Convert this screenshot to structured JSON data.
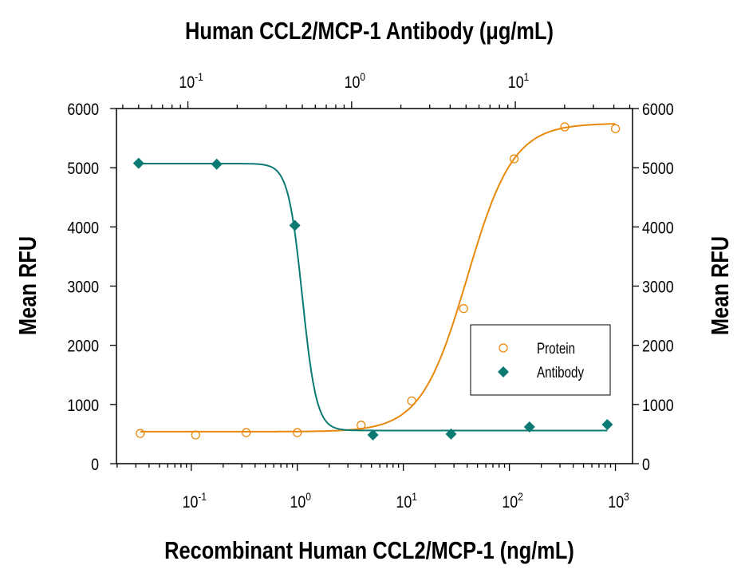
{
  "chart_data": {
    "type": "scatter",
    "title": "",
    "top_xlabel": "Human CCL2/MCP-1 Antibody (μg/mL)",
    "xlabel": "Recombinant Human CCL2/MCP-1 (ng/mL)",
    "ylabel": "Mean RFU",
    "ylabel_right": "Mean RFU",
    "x_scale": "log",
    "top_x_scale": "log",
    "xlim": [
      0.0197,
      1450
    ],
    "top_xlim": [
      0.0366,
      52
    ],
    "ylim": [
      0,
      6000
    ],
    "yticks": [
      "0",
      "1000",
      "2000",
      "3000",
      "4000",
      "5000",
      "6000"
    ],
    "xticks": [
      {
        "base": "10",
        "exp": "-1",
        "value": 0.1
      },
      {
        "base": "10",
        "exp": "0",
        "value": 1
      },
      {
        "base": "10",
        "exp": "1",
        "value": 10
      },
      {
        "base": "10",
        "exp": "2",
        "value": 100
      },
      {
        "base": "10",
        "exp": "3",
        "value": 1000
      }
    ],
    "top_xticks": [
      {
        "base": "10",
        "exp": "-1",
        "value": 0.1
      },
      {
        "base": "10",
        "exp": "0",
        "value": 1
      },
      {
        "base": "10",
        "exp": "1",
        "value": 10
      }
    ],
    "grid": false,
    "legend_position": "center-right",
    "series": [
      {
        "name": "Protein",
        "axis": "bottom",
        "marker": "open-circle",
        "color": "#E8890C",
        "x": [
          0.033,
          0.11,
          0.33,
          1,
          4,
          12,
          37,
          111,
          333,
          1000
        ],
        "y": [
          510,
          485,
          525,
          525,
          650,
          1060,
          2620,
          5150,
          5690,
          5660
        ],
        "fit": {
          "bottom": 540,
          "top": 5750,
          "ec50": 40,
          "hill": 2
        }
      },
      {
        "name": "Antibody",
        "axis": "top",
        "marker": "filled-diamond",
        "color": "#0B7A73",
        "x": [
          0.05,
          0.15,
          0.45,
          1.35,
          4.05,
          12.2,
          36.5
        ],
        "y": [
          5075,
          5060,
          4025,
          485,
          500,
          620,
          660
        ],
        "fit": {
          "bottom": 560,
          "top": 5070,
          "ec50": 0.5,
          "hill": -10
        }
      }
    ]
  }
}
